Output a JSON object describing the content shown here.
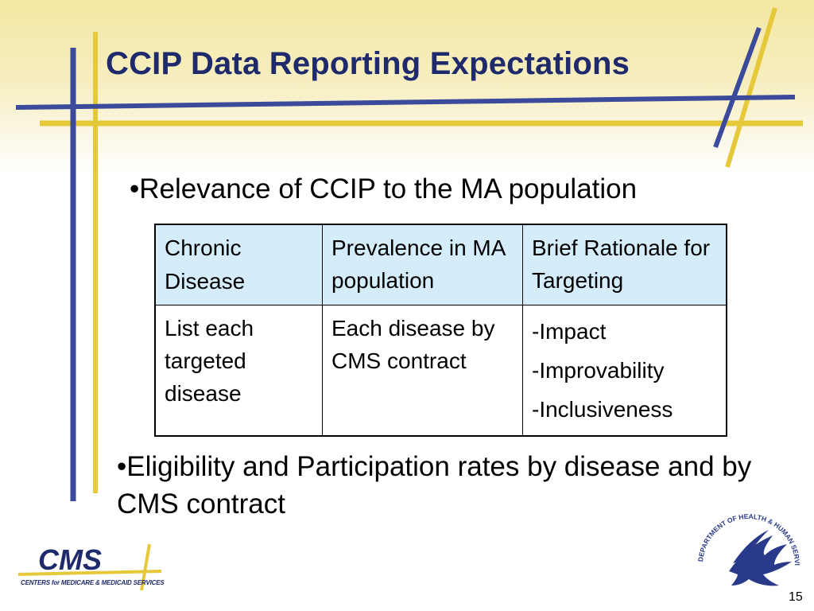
{
  "slide": {
    "title": "CCIP Data Reporting Expectations",
    "bullet1": "•Relevance of CCIP to the MA population",
    "bullet2": "•Eligibility and Participation rates by disease and by CMS contract",
    "page_number": "15"
  },
  "table": {
    "header": {
      "col1_line1": "Chronic",
      "col1_line2": "Disease",
      "col2": "Prevalence in MA population",
      "col3": "Brief Rationale for Targeting"
    },
    "row": {
      "col1": "List each targeted disease",
      "col2": "Each disease by CMS contract",
      "col3_items": [
        "-Impact",
        "-Improvability",
        "-Inclusiveness"
      ]
    }
  },
  "logos": {
    "cms_text": "CMS",
    "cms_tagline": "CENTERS for MEDICARE & MEDICAID SERVICES",
    "hhs_seal_text": "DEPARTMENT OF HEALTH & HUMAN SERVICES · USA",
    "cms_icon": "cms-logo",
    "hhs_icon": "hhs-eagle-seal"
  },
  "colors": {
    "title": "#1f2a6d",
    "header_fill": "#d5ecfb",
    "deco_blue": "#3b4a9a",
    "deco_gold": "#e6c93a"
  }
}
